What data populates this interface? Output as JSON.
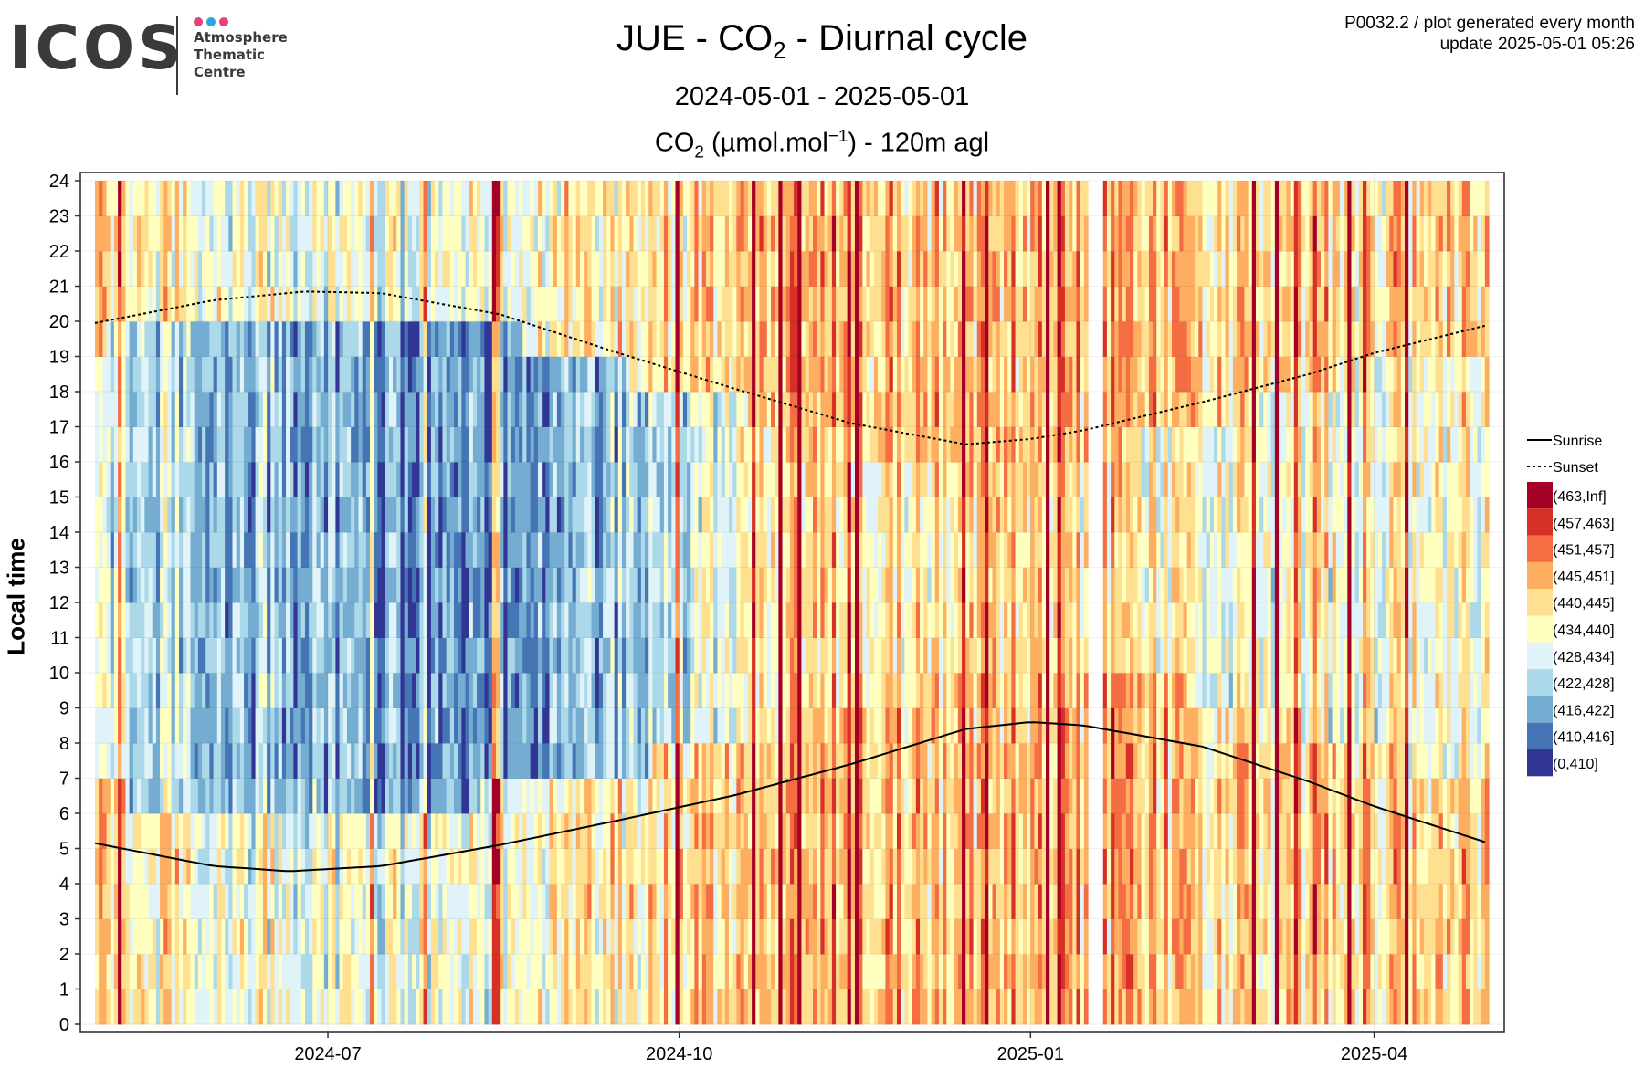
{
  "logo": {
    "word": "ICOS",
    "lines": [
      "Atmosphere",
      "Thematic",
      "Centre"
    ],
    "dot_colors": [
      "#e8407a",
      "#2aa6e0",
      "#e8407a"
    ]
  },
  "header": {
    "title_station": "JUE",
    "title_species": "CO",
    "title_species_sub": "2",
    "title_rest": "Diurnal cycle",
    "period": "2024-05-01 - 2025-05-01",
    "subtitle_species": "CO",
    "subtitle_species_sub": "2",
    "subtitle_unit_pre": "(µmol.mol",
    "subtitle_unit_sup": "−1",
    "subtitle_unit_post": ") - 120m agl",
    "meta_line1": "P0032.2 / plot generated every month",
    "meta_line2": "update  2025-05-01 05:26"
  },
  "chart_data": {
    "type": "heatmap",
    "x_start": "2024-05-01",
    "x_end": "2025-05-01",
    "x_ticks": [
      "2024-07",
      "2024-10",
      "2025-01",
      "2025-04"
    ],
    "ylabel": "Local time",
    "ylim": [
      0,
      24
    ],
    "y_ticks": [
      0,
      1,
      2,
      3,
      4,
      5,
      6,
      7,
      8,
      9,
      10,
      11,
      12,
      13,
      14,
      15,
      16,
      17,
      18,
      19,
      20,
      21,
      22,
      23,
      24
    ],
    "grid": true,
    "legend_placement": "right",
    "legend_lines": [
      {
        "name": "Sunrise",
        "style": "solid"
      },
      {
        "name": "Sunset",
        "style": "dotted"
      }
    ],
    "legend_bins": [
      {
        "label": "(463,Inf]",
        "color": "#a50026"
      },
      {
        "label": "(457,463]",
        "color": "#d73027"
      },
      {
        "label": "(451,457]",
        "color": "#f46d43"
      },
      {
        "label": "(445,451]",
        "color": "#fdae61"
      },
      {
        "label": "(440,445]",
        "color": "#fee090"
      },
      {
        "label": "(434,440]",
        "color": "#ffffbf"
      },
      {
        "label": "(428,434]",
        "color": "#e0f3f8"
      },
      {
        "label": "(422,428]",
        "color": "#abd9e9"
      },
      {
        "label": "(416,422]",
        "color": "#74add1"
      },
      {
        "label": "(410,416]",
        "color": "#4575b4"
      },
      {
        "label": "(0,410]",
        "color": "#313695"
      }
    ],
    "sunrise_hours": [
      {
        "date": "2024-05-01",
        "hour": 5.15
      },
      {
        "date": "2024-06-01",
        "hour": 4.5
      },
      {
        "date": "2024-06-21",
        "hour": 4.35
      },
      {
        "date": "2024-07-15",
        "hour": 4.5
      },
      {
        "date": "2024-08-15",
        "hour": 5.1
      },
      {
        "date": "2024-09-15",
        "hour": 5.8
      },
      {
        "date": "2024-10-15",
        "hour": 6.5
      },
      {
        "date": "2024-11-15",
        "hour": 7.4
      },
      {
        "date": "2024-12-15",
        "hour": 8.4
      },
      {
        "date": "2025-01-01",
        "hour": 8.6
      },
      {
        "date": "2025-01-15",
        "hour": 8.5
      },
      {
        "date": "2025-02-15",
        "hour": 7.9
      },
      {
        "date": "2025-03-15",
        "hour": 6.9
      },
      {
        "date": "2025-04-01",
        "hour": 6.2
      },
      {
        "date": "2025-05-01",
        "hour": 5.15
      }
    ],
    "sunset_hours": [
      {
        "date": "2024-05-01",
        "hour": 19.95
      },
      {
        "date": "2024-06-01",
        "hour": 20.6
      },
      {
        "date": "2024-06-25",
        "hour": 20.85
      },
      {
        "date": "2024-07-15",
        "hour": 20.8
      },
      {
        "date": "2024-08-15",
        "hour": 20.2
      },
      {
        "date": "2024-09-15",
        "hour": 19.1
      },
      {
        "date": "2024-10-15",
        "hour": 18.1
      },
      {
        "date": "2024-11-15",
        "hour": 17.1
      },
      {
        "date": "2024-12-15",
        "hour": 16.5
      },
      {
        "date": "2025-01-01",
        "hour": 16.65
      },
      {
        "date": "2025-01-15",
        "hour": 16.9
      },
      {
        "date": "2025-02-15",
        "hour": 17.7
      },
      {
        "date": "2025-03-15",
        "hour": 18.5
      },
      {
        "date": "2025-04-01",
        "hour": 19.1
      },
      {
        "date": "2025-05-01",
        "hour": 19.9
      }
    ],
    "seasonal_bin_profile": [
      {
        "date": "2024-05-01",
        "day_bin_index": 6,
        "night_bin_index": 4
      },
      {
        "date": "2024-06-01",
        "day_bin_index": 7,
        "night_bin_index": 5
      },
      {
        "date": "2024-07-01",
        "day_bin_index": 8,
        "night_bin_index": 6
      },
      {
        "date": "2024-08-01",
        "day_bin_index": 8.6,
        "night_bin_index": 5.5
      },
      {
        "date": "2024-09-01",
        "day_bin_index": 8,
        "night_bin_index": 5
      },
      {
        "date": "2024-10-01",
        "day_bin_index": 6.5,
        "night_bin_index": 4.2
      },
      {
        "date": "2024-11-01",
        "day_bin_index": 3.5,
        "night_bin_index": 2.8
      },
      {
        "date": "2024-12-01",
        "day_bin_index": 4.5,
        "night_bin_index": 3.6
      },
      {
        "date": "2025-01-01",
        "day_bin_index": 3.6,
        "night_bin_index": 3.2
      },
      {
        "date": "2025-02-01",
        "day_bin_index": 4.8,
        "night_bin_index": 3.6
      },
      {
        "date": "2025-03-01",
        "day_bin_index": 5.3,
        "night_bin_index": 4.1
      },
      {
        "date": "2025-04-01",
        "day_bin_index": 5.2,
        "night_bin_index": 4
      },
      {
        "date": "2025-05-01",
        "day_bin_index": 5,
        "night_bin_index": 3.8
      }
    ],
    "gaps": [
      {
        "from": "2025-01-16",
        "to": "2025-01-19"
      }
    ]
  }
}
